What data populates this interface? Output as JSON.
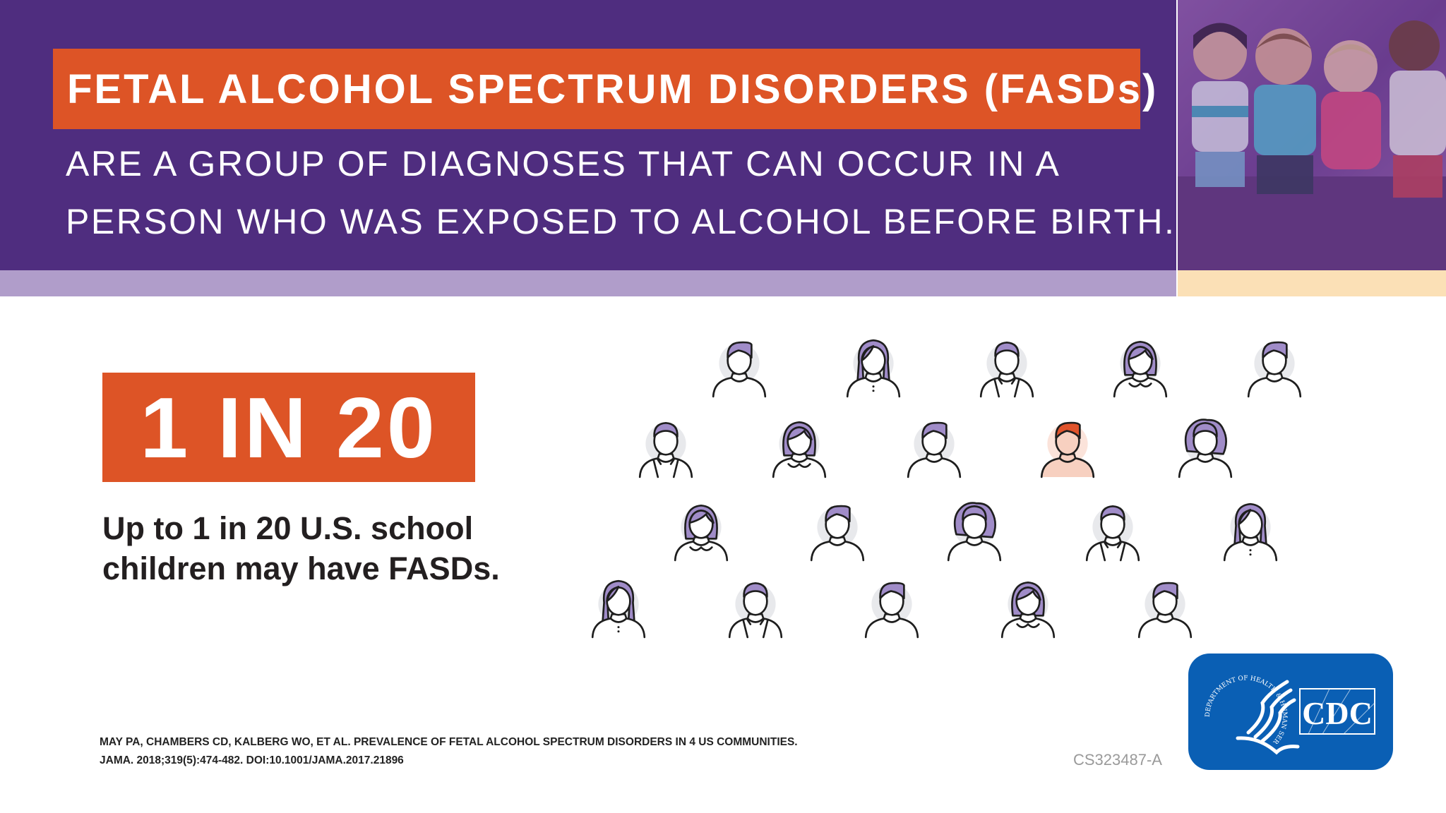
{
  "header": {
    "title": "FETAL ALCOHOL SPECTRUM DISORDERS (FASDs)",
    "subtitle_lines": [
      "ARE A GROUP OF DIAGNOSES THAT CAN OCCUR IN A",
      "PERSON WHO WAS EXPOSED TO ALCOHOL BEFORE BIRTH."
    ]
  },
  "stat": {
    "headline": "1 IN 20",
    "description_lines": [
      "Up to 1 in 20 U.S. school",
      "children may have FASDs."
    ]
  },
  "people_grid": {
    "rows": [
      [
        "short",
        "long",
        "curly-hoodie",
        "bob",
        "short"
      ],
      [
        "curly-hoodie",
        "bob",
        "short",
        "short-highlight",
        "curly-big"
      ],
      [
        "bob",
        "short",
        "curly-big",
        "curly-hoodie",
        "long"
      ],
      [
        "long",
        "curly-hoodie",
        "short",
        "bob",
        "short"
      ]
    ],
    "highlighted_count": 1,
    "total_count": 20
  },
  "citation": {
    "lines": [
      "MAY PA, CHAMBERS CD, KALBERG WO, ET AL. PREVALENCE OF FETAL ALCOHOL SPECTRUM DISORDERS IN 4 US COMMUNITIES.",
      "JAMA. 2018;319(5):474-482. DOI:10.1001/JAMA.2017.21896"
    ]
  },
  "doc_code": "CS323487-A",
  "logo": {
    "seal_text": "DEPARTMENT OF HEALTH & HUMAN SERVICES USA",
    "text": "CDC"
  },
  "colors": {
    "purple": "#4f2d7f",
    "orange": "#dd5426",
    "lavender": "#b09dca",
    "hair": "#a08cc8",
    "highlight": "#e0532b",
    "cdc_blue": "#0a5fb4"
  }
}
